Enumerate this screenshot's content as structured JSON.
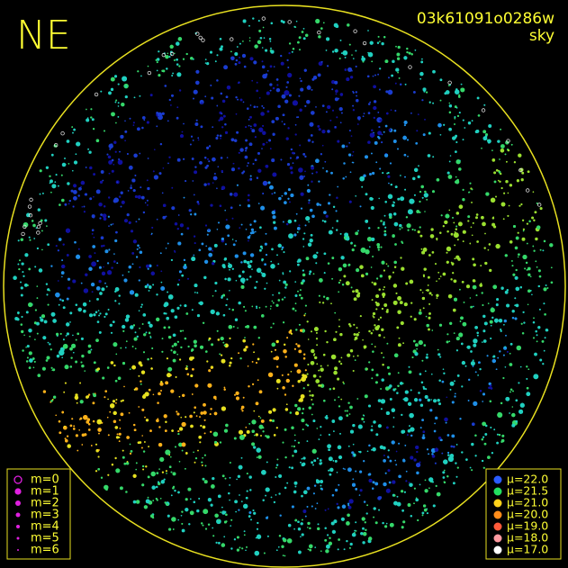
{
  "header": {
    "direction": "NE",
    "frame_id": "03k61091o0286w",
    "product": "sky"
  },
  "magnitude_legend": [
    "m=0",
    "m=1",
    "m=2",
    "m=3",
    "m=4",
    "m=5",
    "m=6"
  ],
  "brightness_legend": [
    {
      "label": "μ=22.0",
      "color": "#2a5cff"
    },
    {
      "label": "μ=21.5",
      "color": "#22e060"
    },
    {
      "label": "μ=21.0",
      "color": "#ffd21a"
    },
    {
      "label": "μ=20.0",
      "color": "#ff8c1a"
    },
    {
      "label": "μ=19.0",
      "color": "#ff5a3a"
    },
    {
      "label": "μ=18.0",
      "color": "#ff9aa0"
    },
    {
      "label": "μ=17.0",
      "color": "#ffffff"
    }
  ]
}
